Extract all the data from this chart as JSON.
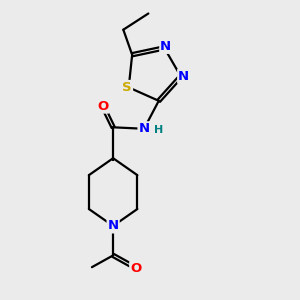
{
  "bg_color": "#ebebeb",
  "bond_color": "#000000",
  "bond_width": 1.6,
  "atom_colors": {
    "N": "#0000ff",
    "O": "#ff0000",
    "S": "#ccaa00",
    "H": "#008080"
  },
  "font_size": 9.5,
  "dbo": 0.055
}
